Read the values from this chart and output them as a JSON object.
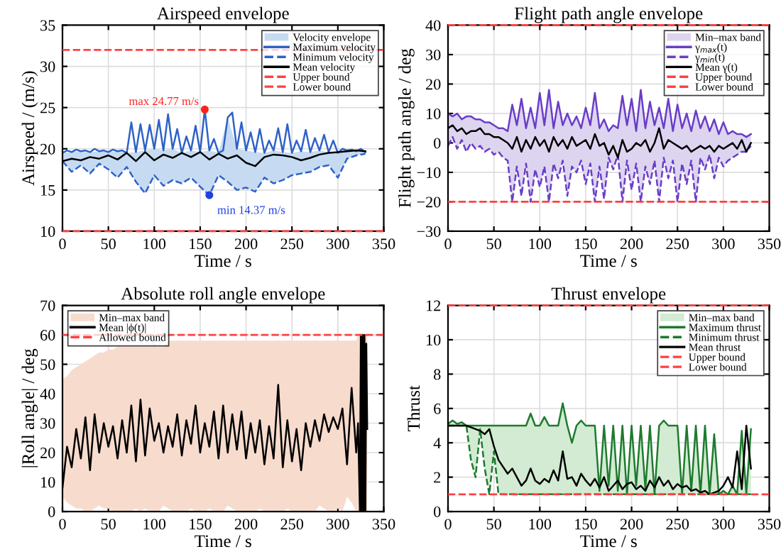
{
  "chart_data": [
    {
      "type": "line",
      "title": "Airspeed envelope",
      "xlabel": "Time / s",
      "ylabel": "Airspeed / (m/s)",
      "xlim": [
        0,
        350
      ],
      "xticks": [
        0,
        50,
        100,
        150,
        200,
        250,
        300,
        350
      ],
      "ylim": [
        10,
        35
      ],
      "yticks": [
        10,
        15,
        20,
        25,
        30,
        35
      ],
      "grid": true,
      "legend": "top right",
      "ref_lines": [
        {
          "axis": "y",
          "value": 32,
          "label": "Upper bound",
          "color": "#ff4040",
          "line_style": "dashed"
        },
        {
          "axis": "y",
          "value": 10,
          "label": "Lower bound",
          "color": "#ff4040",
          "line_style": "dashed"
        }
      ],
      "annotations": [
        {
          "text": "max 24.77 m/s",
          "x": 155,
          "y": 24.77
        },
        {
          "text": "min 14.37 m/s",
          "x": 160,
          "y": 14.37
        }
      ],
      "series": [
        {
          "name": "Velocity envelope",
          "type": "area",
          "color": "#c6dbf2"
        },
        {
          "name": "Maximum velocity",
          "color": "#2e62c8",
          "line_style": "solid",
          "x": [
            0,
            5,
            10,
            15,
            20,
            25,
            30,
            35,
            40,
            45,
            50,
            55,
            60,
            65,
            70,
            75,
            80,
            85,
            90,
            95,
            100,
            105,
            110,
            115,
            120,
            125,
            130,
            135,
            140,
            145,
            150,
            155,
            160,
            165,
            170,
            175,
            180,
            185,
            190,
            195,
            200,
            205,
            210,
            215,
            220,
            225,
            230,
            235,
            240,
            245,
            250,
            255,
            260,
            265,
            270,
            275,
            280,
            285,
            290,
            295,
            300,
            305,
            310,
            315,
            320,
            325,
            330
          ],
          "values": [
            19.5,
            19.8,
            19.6,
            19.9,
            19.7,
            19.8,
            19.6,
            20.0,
            19.7,
            19.8,
            19.6,
            19.9,
            19.7,
            19.8,
            19.5,
            23.2,
            19.6,
            23.0,
            19.8,
            22.9,
            20.0,
            23.5,
            19.8,
            24.2,
            20.0,
            22.4,
            19.5,
            21.5,
            19.8,
            22.8,
            19.6,
            24.77,
            19.8,
            21.2,
            19.5,
            19.8,
            23.8,
            24.4,
            20.0,
            23.2,
            19.8,
            22.0,
            19.6,
            22.4,
            19.5,
            21.0,
            19.8,
            22.5,
            19.6,
            23.0,
            19.5,
            21.0,
            19.7,
            22.3,
            19.6,
            21.3,
            19.8,
            21.7,
            19.6,
            21.0,
            19.5,
            20.0,
            19.8,
            19.9,
            19.7,
            20.0,
            19.6
          ]
        },
        {
          "name": "Minimum velocity",
          "color": "#2e62c8",
          "line_style": "dashed",
          "x": [
            0,
            10,
            20,
            30,
            40,
            50,
            60,
            70,
            80,
            90,
            100,
            110,
            120,
            130,
            140,
            150,
            160,
            170,
            180,
            190,
            200,
            210,
            220,
            230,
            240,
            250,
            260,
            270,
            280,
            290,
            300,
            310,
            320,
            330
          ],
          "values": [
            18.5,
            17.2,
            18.0,
            17.0,
            18.2,
            17.5,
            16.5,
            17.8,
            16.0,
            14.6,
            16.8,
            15.5,
            16.2,
            15.8,
            16.5,
            15.4,
            14.37,
            16.8,
            16.0,
            15.0,
            15.3,
            14.8,
            16.5,
            15.8,
            16.2,
            16.8,
            17.0,
            17.2,
            17.8,
            18.0,
            16.5,
            18.8,
            19.2,
            19.4
          ]
        },
        {
          "name": "Mean velocity",
          "color": "#000000",
          "line_style": "solid",
          "x": [
            0,
            10,
            20,
            30,
            40,
            50,
            60,
            70,
            80,
            90,
            100,
            110,
            120,
            130,
            140,
            150,
            160,
            170,
            180,
            190,
            200,
            210,
            220,
            230,
            240,
            250,
            260,
            270,
            280,
            290,
            300,
            310,
            320,
            330
          ],
          "values": [
            18.5,
            18.8,
            18.6,
            19.0,
            18.8,
            19.2,
            18.7,
            19.5,
            18.5,
            19.6,
            18.6,
            19.3,
            18.9,
            19.5,
            19.0,
            19.6,
            18.7,
            19.4,
            18.8,
            19.2,
            18.3,
            17.9,
            19.0,
            19.3,
            19.2,
            19.0,
            18.6,
            18.9,
            19.3,
            19.5,
            19.6,
            19.7,
            19.8,
            19.7
          ],
          "lower": [
            18.5,
            17.2,
            18.0,
            17.0,
            18.2,
            17.5,
            16.5,
            17.8,
            16.0,
            14.6,
            16.8,
            15.5,
            16.2,
            15.8,
            16.5,
            15.4,
            14.37,
            16.8,
            16.0,
            15.0,
            15.3,
            14.8,
            16.5,
            15.8,
            16.2,
            16.8,
            17.0,
            17.2,
            17.8,
            18.0,
            16.5,
            18.8,
            19.2,
            19.4
          ],
          "upper": [
            19.5,
            19.6,
            19.7,
            19.6,
            19.7,
            19.6,
            19.7,
            19.5,
            19.6,
            19.8,
            20.0,
            19.8,
            20.0,
            19.5,
            19.8,
            19.6,
            19.8,
            19.5,
            23.8,
            20.0,
            19.8,
            19.6,
            19.5,
            19.8,
            19.6,
            19.5,
            19.7,
            19.6,
            19.8,
            19.6,
            19.5,
            19.8,
            19.8,
            19.8
          ]
        }
      ]
    },
    {
      "type": "line",
      "title": "Flight path angle envelope",
      "xlabel": "Time / s",
      "ylabel": "Flight path angle / deg",
      "xlim": [
        0,
        350
      ],
      "xticks": [
        0,
        50,
        100,
        150,
        200,
        250,
        300,
        350
      ],
      "ylim": [
        -30,
        40
      ],
      "yticks": [
        -30,
        -20,
        -10,
        0,
        10,
        20,
        30,
        40
      ],
      "grid": true,
      "legend": "top right",
      "ref_lines": [
        {
          "axis": "y",
          "value": 40,
          "label": "Upper bound",
          "color": "#ff4040",
          "line_style": "dashed"
        },
        {
          "axis": "y",
          "value": -20,
          "label": "Lower bound",
          "color": "#ff4040",
          "line_style": "dashed"
        }
      ],
      "series": [
        {
          "name": "Min–max band",
          "type": "area",
          "color": "#ddd5f0"
        },
        {
          "name": "γ$_{max}$(t)",
          "color": "#6a3dc8",
          "line_style": "solid",
          "x": [
            0,
            5,
            10,
            15,
            20,
            25,
            30,
            35,
            40,
            45,
            50,
            55,
            60,
            65,
            70,
            75,
            80,
            85,
            90,
            95,
            100,
            105,
            110,
            115,
            120,
            125,
            130,
            135,
            140,
            145,
            150,
            155,
            160,
            165,
            170,
            175,
            180,
            185,
            190,
            195,
            200,
            205,
            210,
            215,
            220,
            225,
            230,
            235,
            240,
            245,
            250,
            255,
            260,
            265,
            270,
            275,
            280,
            285,
            290,
            295,
            300,
            305,
            310,
            315,
            320,
            325,
            330
          ],
          "values": [
            10,
            9,
            10,
            8,
            9,
            9,
            8,
            8,
            7,
            7,
            6,
            5,
            5,
            4,
            13,
            6,
            15,
            5,
            12,
            5,
            17,
            6,
            18,
            5,
            14,
            6,
            10,
            6,
            9,
            5,
            12,
            6,
            17,
            5,
            8,
            4,
            6,
            5,
            16,
            6,
            15,
            4,
            18,
            5,
            14,
            6,
            12,
            5,
            15,
            4,
            13,
            5,
            10,
            4,
            11,
            5,
            9,
            4,
            8,
            3,
            7,
            3,
            4,
            3,
            3,
            2,
            3
          ]
        },
        {
          "name": "γ$_{min}$(t)",
          "color": "#6a3dc8",
          "line_style": "dashed",
          "x": [
            0,
            5,
            10,
            15,
            20,
            25,
            30,
            35,
            40,
            45,
            50,
            55,
            60,
            65,
            70,
            75,
            80,
            85,
            90,
            95,
            100,
            105,
            110,
            115,
            120,
            125,
            130,
            135,
            140,
            145,
            150,
            155,
            160,
            165,
            170,
            175,
            180,
            185,
            190,
            195,
            200,
            205,
            210,
            215,
            220,
            225,
            230,
            235,
            240,
            245,
            250,
            255,
            260,
            265,
            270,
            275,
            280,
            285,
            290,
            295,
            300,
            305,
            310,
            315,
            320,
            325,
            330
          ],
          "values": [
            -1,
            2,
            -2,
            1,
            -3,
            0,
            -2,
            -1,
            -3,
            -2,
            -4,
            -3,
            -5,
            -6,
            -20,
            -8,
            -18,
            -7,
            -20,
            -9,
            -15,
            -8,
            -20,
            -7,
            -12,
            -6,
            -18,
            -8,
            -10,
            -6,
            -14,
            -7,
            -20,
            -8,
            -19,
            -5,
            -9,
            -4,
            -20,
            -6,
            -16,
            -7,
            -20,
            -8,
            -14,
            -6,
            -20,
            -5,
            -12,
            -6,
            -20,
            -7,
            -14,
            -6,
            -20,
            -5,
            -9,
            -4,
            -12,
            -5,
            -8,
            -6,
            -5,
            -4,
            -3,
            -3,
            -1
          ]
        },
        {
          "name": "Mean γ(t)",
          "color": "#000000",
          "line_style": "solid",
          "x": [
            0,
            5,
            10,
            15,
            20,
            25,
            30,
            35,
            40,
            45,
            50,
            55,
            60,
            65,
            70,
            75,
            80,
            85,
            90,
            95,
            100,
            105,
            110,
            115,
            120,
            125,
            130,
            135,
            140,
            145,
            150,
            155,
            160,
            165,
            170,
            175,
            180,
            185,
            190,
            195,
            200,
            205,
            210,
            215,
            220,
            225,
            230,
            235,
            240,
            245,
            250,
            255,
            260,
            265,
            270,
            275,
            280,
            285,
            290,
            295,
            300,
            305,
            310,
            315,
            320,
            325,
            330
          ],
          "values": [
            5,
            6,
            4,
            5,
            3,
            4,
            4,
            5,
            3,
            3,
            2,
            2,
            1,
            0,
            -2,
            2,
            -3,
            1,
            -2,
            2,
            -1,
            1,
            -3,
            2,
            -1,
            1,
            -2,
            2,
            -1,
            0,
            1,
            -2,
            3,
            -1,
            0,
            -4,
            -1,
            -5,
            1,
            -3,
            -2,
            0,
            -1,
            1,
            -3,
            0,
            5,
            -2,
            1,
            0,
            -1,
            -2,
            -1,
            -3,
            -2,
            -1,
            -2,
            -1,
            -3,
            -1,
            -2,
            -1,
            0,
            -2,
            1,
            -3,
            0
          ],
          "lower": [
            -1,
            2,
            -2,
            1,
            -3,
            0,
            -2,
            -1,
            -3,
            -2,
            -4,
            -3,
            -5,
            -6,
            -20,
            -8,
            -18,
            -7,
            -20,
            -9,
            -15,
            -8,
            -20,
            -7,
            -12,
            -6,
            -18,
            -8,
            -10,
            -6,
            -14,
            -7,
            -20,
            -8,
            -19,
            -5,
            -9,
            -4,
            -20,
            -6,
            -16,
            -7,
            -20,
            -8,
            -14,
            -6,
            -20,
            -5,
            -12,
            -6,
            -20,
            -7,
            -14,
            -6,
            -20,
            -5,
            -9,
            -4,
            -12,
            -5,
            -8,
            -6,
            -5,
            -4,
            -3,
            -3,
            -1
          ],
          "upper": [
            10,
            9,
            10,
            8,
            9,
            9,
            8,
            8,
            7,
            7,
            6,
            5,
            5,
            4,
            13,
            6,
            15,
            5,
            12,
            5,
            17,
            6,
            18,
            5,
            14,
            6,
            10,
            6,
            9,
            5,
            12,
            6,
            17,
            5,
            8,
            4,
            6,
            5,
            16,
            6,
            15,
            4,
            18,
            5,
            14,
            6,
            12,
            5,
            15,
            4,
            13,
            5,
            10,
            4,
            11,
            5,
            9,
            4,
            8,
            3,
            7,
            3,
            4,
            3,
            3,
            2,
            3
          ]
        }
      ]
    },
    {
      "type": "line",
      "title": "Absolute roll angle envelope",
      "xlabel": "Time / s",
      "ylabel": "|Roll angle| / deg",
      "xlim": [
        0,
        350
      ],
      "xticks": [
        0,
        50,
        100,
        150,
        200,
        250,
        300,
        350
      ],
      "ylim": [
        0,
        70
      ],
      "yticks": [
        0,
        10,
        20,
        30,
        40,
        50,
        60,
        70
      ],
      "grid": true,
      "legend": "top left",
      "ref_lines": [
        {
          "axis": "y",
          "value": 60,
          "label": "Allowed bound",
          "color": "#ff4040",
          "line_style": "dashed"
        }
      ],
      "series": [
        {
          "name": "Min–max band",
          "type": "area",
          "color": "#f7dccd"
        },
        {
          "name": "Mean |ϕ(t)|",
          "color": "#000000",
          "line_style": "solid",
          "x": [
            0,
            5,
            10,
            15,
            20,
            25,
            30,
            35,
            40,
            45,
            50,
            55,
            60,
            65,
            70,
            75,
            80,
            85,
            90,
            95,
            100,
            105,
            110,
            115,
            120,
            125,
            130,
            135,
            140,
            145,
            150,
            155,
            160,
            165,
            170,
            175,
            180,
            185,
            190,
            195,
            200,
            205,
            210,
            215,
            220,
            225,
            230,
            235,
            240,
            245,
            250,
            255,
            260,
            265,
            270,
            275,
            280,
            285,
            290,
            295,
            300,
            305,
            310,
            315,
            320,
            322,
            324,
            325,
            326,
            327,
            328,
            329,
            330,
            331,
            332
          ],
          "values": [
            8,
            22,
            15,
            28,
            18,
            32,
            14,
            33,
            20,
            30,
            22,
            29,
            18,
            31,
            20,
            36,
            17,
            38,
            19,
            35,
            24,
            30,
            20,
            29,
            22,
            33,
            19,
            31,
            23,
            36,
            20,
            30,
            22,
            34,
            18,
            36,
            20,
            33,
            21,
            34,
            18,
            30,
            20,
            31,
            16,
            29,
            18,
            43,
            15,
            31,
            17,
            28,
            14,
            30,
            22,
            31,
            24,
            33,
            27,
            32,
            28,
            35,
            16,
            42,
            20,
            30,
            0,
            60,
            0,
            60,
            0,
            60,
            0,
            57,
            28
          ],
          "lower": [
            5,
            3,
            2,
            1,
            1,
            0,
            0,
            1,
            2,
            1,
            1,
            0,
            0,
            0,
            0,
            0,
            1,
            0,
            1,
            0,
            0,
            0,
            2,
            1,
            0,
            0,
            0,
            0,
            1,
            0,
            0,
            0,
            1,
            0,
            0,
            0,
            2,
            1,
            0,
            0,
            0,
            0,
            0,
            1,
            0,
            0,
            0,
            0,
            0,
            1,
            0,
            0,
            0,
            0,
            0,
            0,
            2,
            1,
            0,
            0,
            1,
            0,
            5,
            3,
            0,
            0,
            0,
            0,
            0,
            0,
            0,
            0,
            0,
            0,
            0
          ],
          "upper": [
            45,
            46,
            48,
            49,
            50,
            51,
            52,
            53,
            54,
            54,
            55,
            55,
            56,
            56,
            56,
            56,
            56,
            56,
            56,
            56,
            56,
            56,
            56,
            58,
            58,
            58,
            58,
            58,
            58,
            58,
            58,
            58,
            58,
            58,
            58,
            58,
            58,
            58,
            58,
            58,
            58,
            58,
            58,
            58,
            58,
            58,
            58,
            58,
            58,
            58,
            58,
            58,
            58,
            58,
            58,
            58,
            58,
            58,
            58,
            58,
            58,
            58,
            58,
            58,
            58,
            60,
            60,
            60,
            60,
            60,
            60,
            60,
            60,
            60,
            60
          ]
        }
      ]
    },
    {
      "type": "line",
      "title": "Thrust envelope",
      "xlabel": "Time / s",
      "ylabel": "Thrust",
      "xlim": [
        0,
        350
      ],
      "xticks": [
        0,
        50,
        100,
        150,
        200,
        250,
        300,
        350
      ],
      "ylim": [
        0,
        12
      ],
      "yticks": [
        0,
        2,
        4,
        6,
        8,
        10,
        12
      ],
      "grid": true,
      "legend": "top right",
      "ref_lines": [
        {
          "axis": "y",
          "value": 12,
          "label": "Upper bound",
          "color": "#ff4040",
          "line_style": "dashed"
        },
        {
          "axis": "y",
          "value": 1,
          "label": "Lower bound",
          "color": "#ff4040",
          "line_style": "dashed"
        }
      ],
      "series": [
        {
          "name": "Min–max band",
          "type": "area",
          "color": "#d2ebd2"
        },
        {
          "name": "Maximum thrust",
          "color": "#1e7a2e",
          "line_style": "solid",
          "x": [
            0,
            5,
            10,
            15,
            20,
            25,
            30,
            35,
            40,
            45,
            50,
            55,
            60,
            65,
            70,
            75,
            80,
            85,
            90,
            95,
            100,
            105,
            110,
            115,
            120,
            125,
            130,
            135,
            140,
            145,
            150,
            155,
            160,
            165,
            170,
            175,
            180,
            185,
            190,
            195,
            200,
            205,
            210,
            215,
            220,
            225,
            230,
            235,
            240,
            245,
            250,
            255,
            260,
            265,
            270,
            275,
            280,
            285,
            290,
            295,
            300,
            305,
            310,
            315,
            320,
            325,
            330
          ],
          "values": [
            5.1,
            5.3,
            5.1,
            5.2,
            5.0,
            5.0,
            5.0,
            5.0,
            5.0,
            5.0,
            5.0,
            5.0,
            5.0,
            5.0,
            5.0,
            5.0,
            5.0,
            5.0,
            5.7,
            5.0,
            5.0,
            5.5,
            5.0,
            5.0,
            5.0,
            6.3,
            5.0,
            4.0,
            5.0,
            5.3,
            5.0,
            5.0,
            5.0,
            1.2,
            5.0,
            1.5,
            5.0,
            1.2,
            5.0,
            1.0,
            5.0,
            1.5,
            5.0,
            1.3,
            5.0,
            1.0,
            5.0,
            5.3,
            5.0,
            5.0,
            5.0,
            1.0,
            5.0,
            1.2,
            5.0,
            1.0,
            5.0,
            1.0,
            4.5,
            1.0,
            1.2,
            1.0,
            1.5,
            1.0,
            4.7,
            1.0,
            4.8
          ]
        },
        {
          "name": "Minimum thrust",
          "color": "#1e7a2e",
          "line_style": "dashed",
          "x": [
            0,
            5,
            10,
            15,
            20,
            25,
            30,
            35,
            40,
            45,
            50,
            55,
            60,
            65,
            70,
            75,
            80,
            85,
            90,
            95,
            100,
            105,
            110,
            115,
            120,
            125,
            130,
            135,
            140,
            145,
            150,
            155,
            160,
            165,
            170,
            175,
            180,
            185,
            190,
            195,
            200,
            205,
            210,
            215,
            220,
            225,
            230,
            235,
            240,
            245,
            250,
            255,
            260,
            265,
            270,
            275,
            280,
            285,
            290,
            295,
            300,
            305,
            310,
            315,
            320,
            325,
            330
          ],
          "values": [
            5.0,
            5.0,
            5.0,
            5.0,
            5.0,
            3.0,
            2.0,
            4.8,
            2.5,
            1.0,
            3.5,
            1.0,
            1.0,
            1.0,
            1.0,
            1.0,
            1.0,
            1.0,
            1.0,
            1.0,
            1.0,
            1.0,
            1.0,
            1.0,
            1.0,
            1.0,
            1.0,
            1.0,
            1.0,
            1.0,
            1.0,
            1.0,
            1.0,
            1.0,
            1.0,
            1.0,
            1.0,
            1.0,
            1.0,
            1.0,
            1.0,
            1.0,
            1.0,
            1.0,
            1.0,
            1.0,
            1.0,
            1.0,
            1.0,
            1.0,
            1.0,
            1.0,
            1.0,
            1.0,
            1.0,
            1.0,
            1.0,
            1.0,
            1.0,
            1.0,
            1.0,
            1.0,
            1.0,
            1.0,
            1.0,
            1.0,
            1.0
          ]
        },
        {
          "name": "Mean thrust",
          "color": "#000000",
          "line_style": "solid",
          "x": [
            0,
            5,
            10,
            15,
            20,
            25,
            30,
            35,
            40,
            45,
            50,
            55,
            60,
            65,
            70,
            75,
            80,
            85,
            90,
            95,
            100,
            105,
            110,
            115,
            120,
            125,
            130,
            135,
            140,
            145,
            150,
            155,
            160,
            165,
            170,
            175,
            180,
            185,
            190,
            195,
            200,
            205,
            210,
            215,
            220,
            225,
            230,
            235,
            240,
            245,
            250,
            255,
            260,
            265,
            270,
            275,
            280,
            285,
            290,
            295,
            300,
            305,
            310,
            315,
            320,
            325,
            330
          ],
          "values": [
            5.0,
            5.0,
            5.0,
            5.0,
            5.0,
            4.9,
            4.8,
            4.7,
            4.5,
            4.8,
            3.8,
            3.0,
            2.6,
            2.2,
            2.5,
            2.0,
            1.5,
            1.8,
            2.5,
            1.8,
            1.6,
            1.9,
            1.7,
            2.4,
            1.8,
            3.5,
            1.9,
            2.0,
            1.5,
            2.2,
            1.8,
            1.5,
            1.9,
            1.4,
            2.0,
            1.2,
            1.5,
            1.8,
            1.3,
            1.6,
            1.7,
            1.3,
            1.5,
            1.2,
            1.8,
            1.4,
            2.0,
            1.5,
            1.8,
            1.3,
            1.6,
            1.4,
            1.5,
            1.2,
            1.3,
            1.1,
            1.2,
            1.0,
            1.1,
            1.2,
            1.5,
            2.0,
            1.4,
            3.5,
            1.3,
            5.0,
            2.5
          ],
          "lower": [
            5.0,
            5.0,
            5.0,
            5.0,
            5.0,
            3.0,
            2.0,
            4.7,
            2.5,
            1.0,
            3.5,
            1.0,
            1.0,
            1.0,
            1.0,
            1.0,
            1.0,
            1.0,
            1.0,
            1.0,
            1.0,
            1.0,
            1.0,
            1.0,
            1.0,
            1.0,
            1.0,
            1.0,
            1.0,
            1.0,
            1.0,
            1.0,
            1.0,
            1.0,
            1.0,
            1.0,
            1.0,
            1.0,
            1.0,
            1.0,
            1.0,
            1.0,
            1.0,
            1.0,
            1.0,
            1.0,
            1.0,
            1.0,
            1.0,
            1.0,
            1.0,
            1.0,
            1.0,
            1.0,
            1.0,
            1.0,
            1.0,
            1.0,
            1.0,
            1.0,
            1.0,
            1.0,
            1.0,
            1.0,
            1.0,
            1.0,
            1.0
          ],
          "upper": [
            5.1,
            5.3,
            5.1,
            5.2,
            5.0,
            5.0,
            5.0,
            5.0,
            5.0,
            5.0,
            5.0,
            5.0,
            5.0,
            5.0,
            5.0,
            5.0,
            5.0,
            5.0,
            5.7,
            5.0,
            5.0,
            5.5,
            5.0,
            5.0,
            5.0,
            6.3,
            5.0,
            4.0,
            5.0,
            5.3,
            5.0,
            5.0,
            5.0,
            1.2,
            5.0,
            1.5,
            5.0,
            1.2,
            5.0,
            1.0,
            5.0,
            1.5,
            5.0,
            1.3,
            5.0,
            1.0,
            5.0,
            5.3,
            5.0,
            5.0,
            5.0,
            1.0,
            5.0,
            1.2,
            5.0,
            1.0,
            5.0,
            1.0,
            4.5,
            1.0,
            1.2,
            1.0,
            1.5,
            1.0,
            4.7,
            1.0,
            4.8
          ]
        }
      ]
    }
  ]
}
